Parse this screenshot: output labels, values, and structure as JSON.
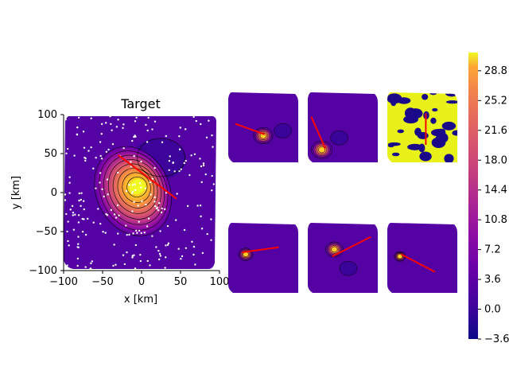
{
  "chart_data": {
    "type": "heatmap",
    "colormap": "plasma",
    "main": {
      "title": "Target",
      "xlabel": "x [km]",
      "ylabel": "y [km]",
      "xlim": [
        -100,
        100
      ],
      "ylim": [
        -100,
        100
      ],
      "xticks": [
        "−100",
        "−50",
        "0",
        "50",
        "100"
      ],
      "yticks": [
        "100",
        "50",
        "0",
        "−50",
        "−100"
      ],
      "peak": {
        "x": -5,
        "y": 8,
        "amplitude": 30
      },
      "secondary": {
        "x": 25,
        "y": 45,
        "amplitude": -3
      },
      "fault_line": [
        [
          -30,
          48
        ],
        [
          45,
          -8
        ]
      ]
    },
    "thumbnails": [
      {
        "row": 1,
        "col": 1,
        "peak": [
          0.5,
          0.62
        ],
        "spread": 0.1,
        "line": [
          [
            0.1,
            0.45
          ],
          [
            0.52,
            0.6
          ]
        ],
        "second": [
          0.78,
          0.55
        ],
        "mode": "smooth"
      },
      {
        "row": 1,
        "col": 2,
        "peak": [
          0.2,
          0.82
        ],
        "spread": 0.11,
        "line": [
          [
            0.05,
            0.35
          ],
          [
            0.25,
            0.8
          ]
        ],
        "second": [
          0.45,
          0.65
        ],
        "mode": "smooth"
      },
      {
        "row": 1,
        "col": 3,
        "peak": [
          0.5,
          0.5
        ],
        "spread": 0.0,
        "line": [
          [
            0.55,
            0.3
          ],
          [
            0.55,
            0.75
          ]
        ],
        "second": null,
        "mode": "patchy"
      },
      {
        "row": 2,
        "col": 1,
        "peak": [
          0.25,
          0.45
        ],
        "spread": 0.07,
        "line": [
          [
            0.2,
            0.42
          ],
          [
            0.72,
            0.35
          ]
        ],
        "second": null,
        "mode": "smooth"
      },
      {
        "row": 2,
        "col": 2,
        "peak": [
          0.38,
          0.38
        ],
        "spread": 0.09,
        "line": [
          [
            0.35,
            0.48
          ],
          [
            0.9,
            0.2
          ]
        ],
        "second": [
          0.58,
          0.65
        ],
        "mode": "smooth"
      },
      {
        "row": 2,
        "col": 3,
        "peak": [
          0.18,
          0.48
        ],
        "spread": 0.05,
        "line": [
          [
            0.2,
            0.45
          ],
          [
            0.68,
            0.7
          ]
        ],
        "second": null,
        "mode": "smooth"
      }
    ],
    "colorbar": {
      "min": -3.6,
      "max": 31,
      "ticks": [
        "28.8",
        "25.2",
        "21.6",
        "18.0",
        "14.4",
        "10.8",
        "7.2",
        "3.6",
        "0.0",
        "−3.6"
      ]
    }
  },
  "colors": {
    "fault_line": "#ff0000",
    "station_dot": "#ffffff",
    "contour": "#000000"
  }
}
